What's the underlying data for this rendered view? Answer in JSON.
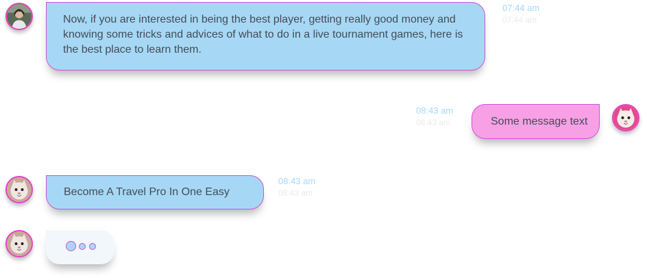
{
  "colors": {
    "incoming_bubble": "#a6d8f5",
    "outgoing_bubble": "#f7a0e6",
    "bubble_border": "#d24fd8",
    "timestamp": "#a6d8f5",
    "typing_bubble": "#f2f7fc"
  },
  "messages": [
    {
      "direction": "incoming",
      "avatar": "woman-avatar",
      "text": "Now, if you are interested in being the best player, getting really good money and knowing some tricks and advices of what to do in a live tournament games, here is the best place to learn them.",
      "time": "07:44 am",
      "time_echo": "07:44 am"
    },
    {
      "direction": "outgoing",
      "avatar": "cat-avatar",
      "text": "Some message text",
      "time": "08:43 am",
      "time_echo": "08:43 am"
    },
    {
      "direction": "incoming",
      "avatar": "cat-avatar",
      "text": "Become A Travel Pro In One Easy",
      "time": "08:43 am",
      "time_echo": "08:43 am"
    }
  ],
  "typing": {
    "avatar": "cat-avatar",
    "dots": 3
  }
}
